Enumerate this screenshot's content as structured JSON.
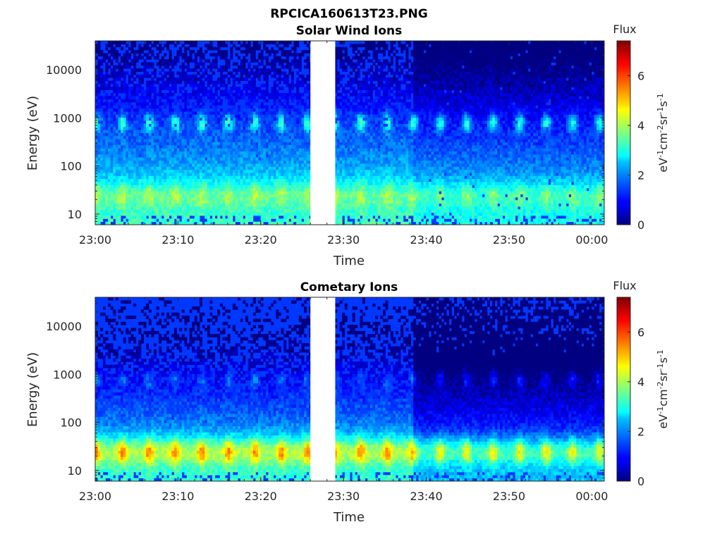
{
  "figure": {
    "title": "RPCICA160613T23.PNG"
  },
  "chart_data": [
    {
      "type": "heatmap",
      "title": "Solar Wind Ions",
      "xlabel": "Time",
      "ylabel": "Energy (eV)",
      "x_ticks": [
        "23:00",
        "23:10",
        "23:20",
        "23:30",
        "23:40",
        "23:50",
        "00:00"
      ],
      "y_ticks": [
        "10",
        "100",
        "1000",
        "10000"
      ],
      "y_scale": "log",
      "ylim": [
        6,
        40000
      ],
      "data_gap": [
        "23:26",
        "23:29"
      ],
      "peak_energies_eV": [
        800,
        25
      ],
      "colorbar": {
        "title": "Flux",
        "label": "eV-1cm-2sr-1s-1",
        "ticks": [
          "0",
          "2",
          "4",
          "6"
        ],
        "range": [
          0,
          7.4
        ],
        "colormap": "jet"
      }
    },
    {
      "type": "heatmap",
      "title": "Cometary Ions",
      "xlabel": "Time",
      "ylabel": "Energy (eV)",
      "x_ticks": [
        "23:00",
        "23:10",
        "23:20",
        "23:30",
        "23:40",
        "23:50",
        "00:00"
      ],
      "y_ticks": [
        "10",
        "100",
        "1000",
        "10000"
      ],
      "y_scale": "log",
      "ylim": [
        6,
        40000
      ],
      "data_gap": [
        "23:26",
        "23:29"
      ],
      "peak_energies_eV": [
        800,
        25
      ],
      "colorbar": {
        "title": "Flux",
        "label": "eV-1cm-2sr-1s-1",
        "ticks": [
          "0",
          "2",
          "4",
          "6"
        ],
        "range": [
          0,
          7.4
        ],
        "colormap": "jet"
      }
    }
  ]
}
